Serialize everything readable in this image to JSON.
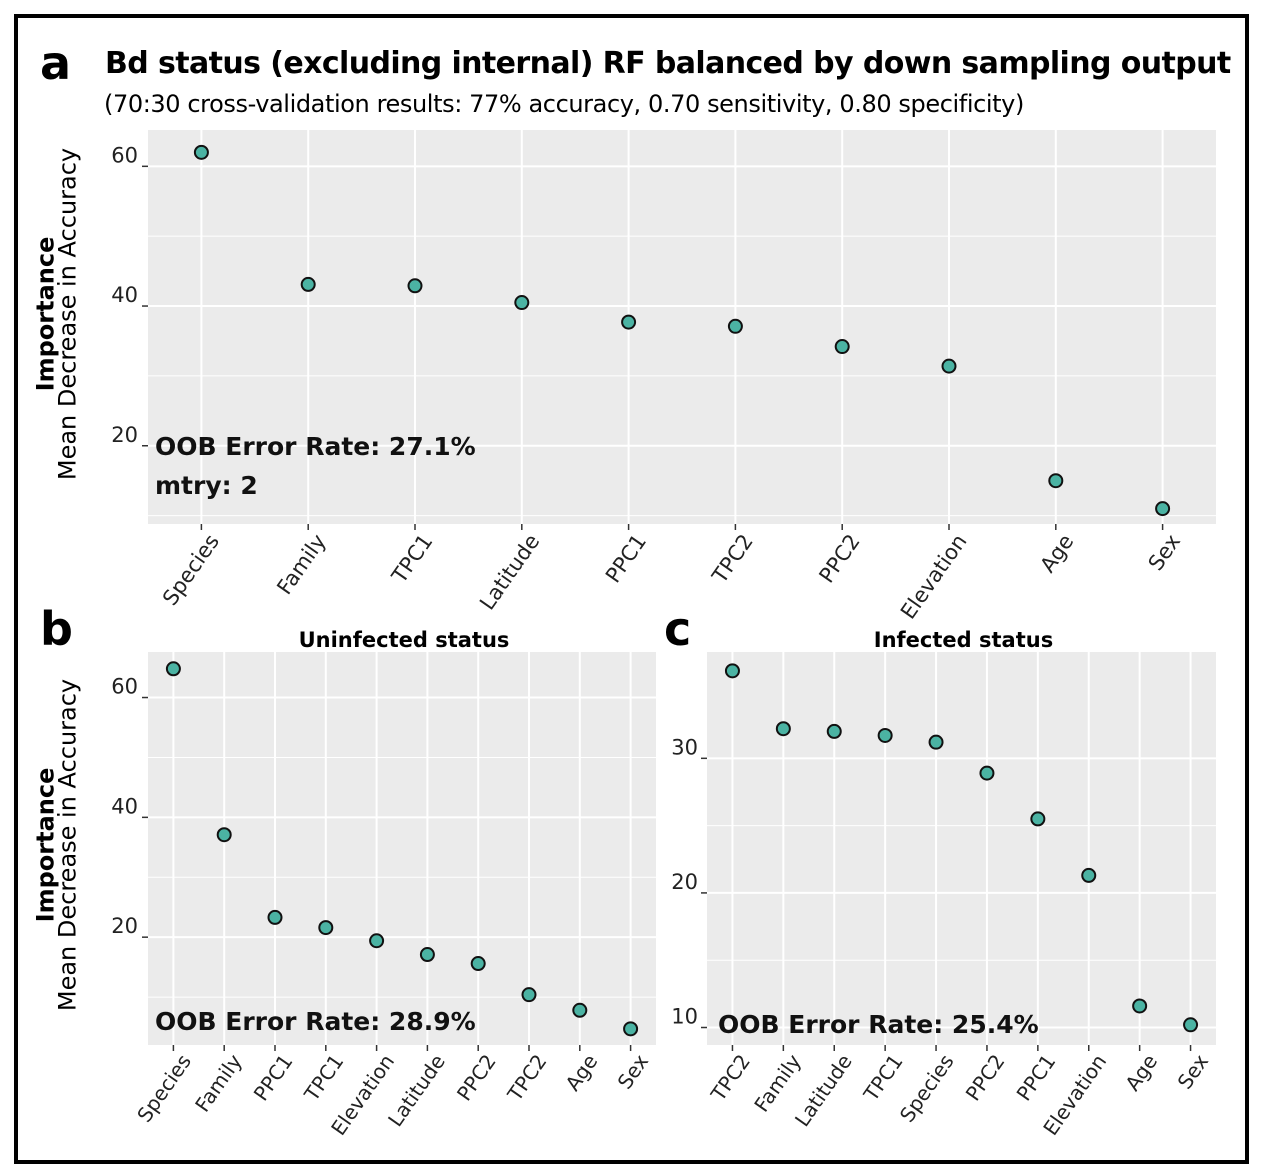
{
  "panel_letters": [
    "a",
    "b",
    "c"
  ],
  "colors": {
    "point_fill": "#4bb3a3",
    "point_stroke": "#111111",
    "panel_bg": "#ebebeb",
    "grid": "#ffffff"
  },
  "chart_data": [
    {
      "panel": "a",
      "type": "scatter",
      "title": "Bd status (excluding internal) RF balanced by down sampling output",
      "subtitle": "(70:30 cross-validation results: 77% accuracy, 0.70 sensitivity, 0.80 specificity)",
      "ylabel_bold": "Importance",
      "ylabel": "Mean Decrease in Accuracy",
      "xlabel": "",
      "categories": [
        "Species",
        "Family",
        "TPC1",
        "Latitude",
        "PPC1",
        "TPC2",
        "PPC2",
        "Elevation",
        "Age",
        "Sex"
      ],
      "values": [
        62.0,
        43.1,
        42.9,
        40.5,
        37.7,
        37.1,
        34.2,
        31.4,
        15.0,
        11.0
      ],
      "ylim": [
        8.8,
        65.2
      ],
      "yticks": [
        20,
        40,
        60
      ],
      "grid": true,
      "annotations": [
        "OOB Error Rate: 27.1%",
        "mtry: 2"
      ]
    },
    {
      "panel": "b",
      "type": "scatter",
      "title": "Uninfected status",
      "ylabel_bold": "Importance",
      "ylabel": "Mean Decrease in Accuracy",
      "xlabel": "",
      "categories": [
        "Species",
        "Family",
        "PPC1",
        "TPC1",
        "Elevation",
        "Latitude",
        "PPC2",
        "TPC2",
        "Age",
        "Sex"
      ],
      "values": [
        64.8,
        37.1,
        23.3,
        21.6,
        19.4,
        17.1,
        15.6,
        10.4,
        7.8,
        4.7
      ],
      "ylim": [
        2.0,
        67.6
      ],
      "yticks": [
        20,
        40,
        60
      ],
      "grid": true,
      "annotations": [
        "OOB Error Rate: 28.9%"
      ]
    },
    {
      "panel": "c",
      "type": "scatter",
      "title": "Infected status",
      "ylabel": "",
      "xlabel": "",
      "categories": [
        "TPC2",
        "Family",
        "Latitude",
        "TPC1",
        "Species",
        "PPC2",
        "PPC1",
        "Elevation",
        "Age",
        "Sex"
      ],
      "values": [
        36.5,
        32.2,
        32.0,
        31.7,
        31.2,
        28.9,
        25.5,
        21.3,
        11.6,
        10.2
      ],
      "ylim": [
        8.7,
        37.9
      ],
      "yticks": [
        10,
        20,
        30
      ],
      "grid": true,
      "annotations": [
        "OOB Error Rate: 25.4%"
      ]
    }
  ]
}
